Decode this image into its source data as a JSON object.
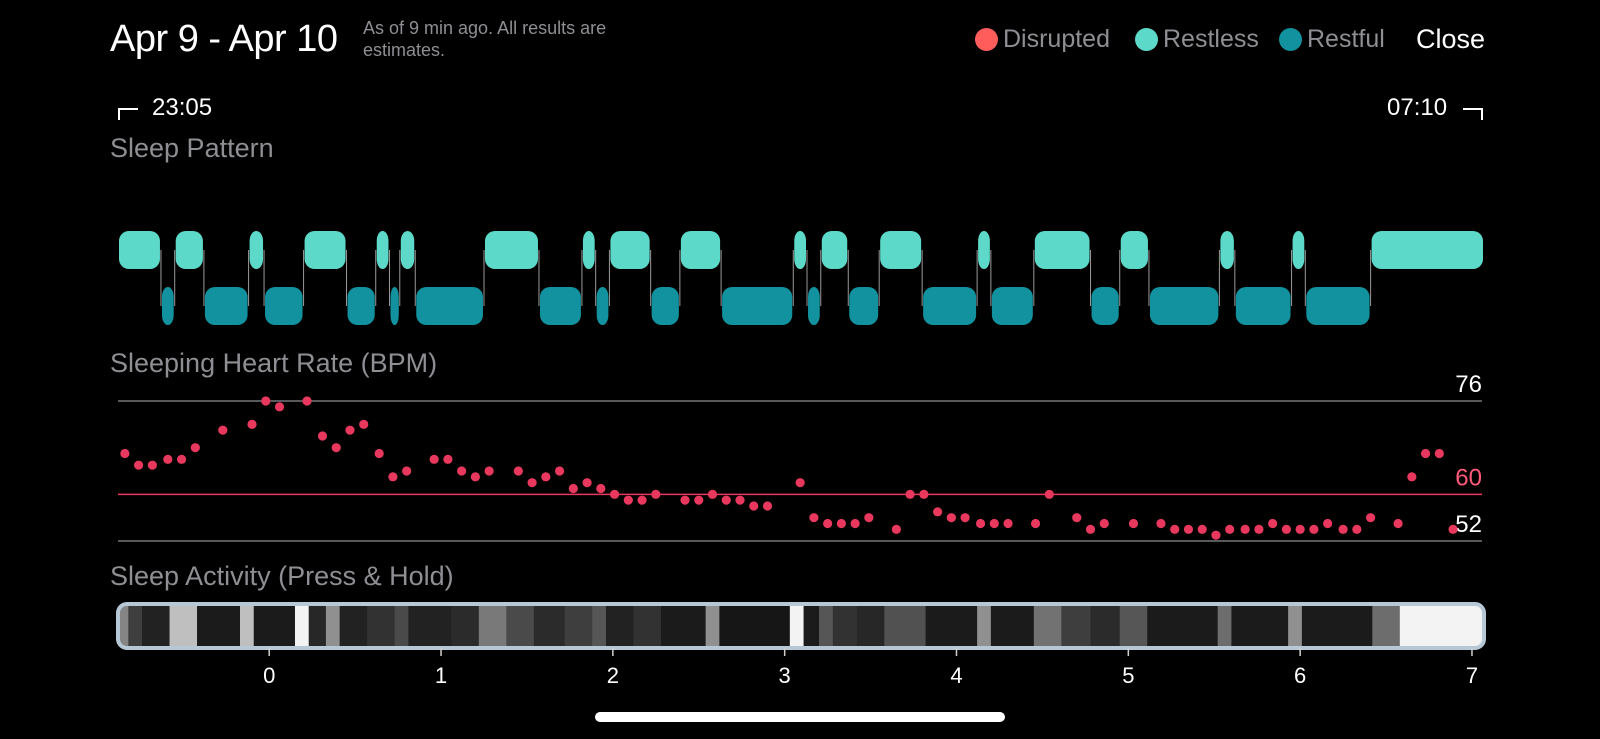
{
  "header": {
    "date_range": "Apr 9 - Apr 10",
    "note": "As of 9 min ago. All results are estimates.",
    "close_label": "Close"
  },
  "legend": [
    {
      "label": "Disrupted",
      "color": "#ff5c5c"
    },
    {
      "label": "Restless",
      "color": "#5dd9c9"
    },
    {
      "label": "Restful",
      "color": "#12919e"
    }
  ],
  "timeline": {
    "start_time": "23:05",
    "end_time": "07:10"
  },
  "sections": {
    "sleep_pattern": "Sleep Pattern",
    "heart_rate": "Sleeping Heart Rate (BPM)",
    "activity": "Sleep Activity (Press & Hold)"
  },
  "colors": {
    "restless": "#5dd9c9",
    "restful": "#12919e",
    "heart_point": "#e8385e",
    "avg_line": "#e8385e",
    "avg_label": "#ff5a78"
  },
  "chart_data": [
    {
      "type": "timeline",
      "name": "Sleep Pattern",
      "unit": "hours since midnight",
      "segments": [
        {
          "stage": "Restless",
          "start": -0.88,
          "end": -0.63
        },
        {
          "stage": "Restful",
          "start": -0.63,
          "end": -0.55
        },
        {
          "stage": "Restless",
          "start": -0.55,
          "end": -0.38
        },
        {
          "stage": "Restful",
          "start": -0.38,
          "end": -0.12
        },
        {
          "stage": "Restless",
          "start": -0.12,
          "end": -0.03
        },
        {
          "stage": "Restful",
          "start": -0.03,
          "end": 0.2
        },
        {
          "stage": "Restless",
          "start": 0.2,
          "end": 0.45
        },
        {
          "stage": "Restful",
          "start": 0.45,
          "end": 0.62
        },
        {
          "stage": "Restless",
          "start": 0.62,
          "end": 0.7
        },
        {
          "stage": "Restful",
          "start": 0.7,
          "end": 0.76
        },
        {
          "stage": "Restless",
          "start": 0.76,
          "end": 0.85
        },
        {
          "stage": "Restful",
          "start": 0.85,
          "end": 1.25
        },
        {
          "stage": "Restless",
          "start": 1.25,
          "end": 1.57
        },
        {
          "stage": "Restful",
          "start": 1.57,
          "end": 1.82
        },
        {
          "stage": "Restless",
          "start": 1.82,
          "end": 1.9
        },
        {
          "stage": "Restful",
          "start": 1.9,
          "end": 1.98
        },
        {
          "stage": "Restless",
          "start": 1.98,
          "end": 2.22
        },
        {
          "stage": "Restful",
          "start": 2.22,
          "end": 2.39
        },
        {
          "stage": "Restless",
          "start": 2.39,
          "end": 2.63
        },
        {
          "stage": "Restful",
          "start": 2.63,
          "end": 3.05
        },
        {
          "stage": "Restless",
          "start": 3.05,
          "end": 3.13
        },
        {
          "stage": "Restful",
          "start": 3.13,
          "end": 3.21
        },
        {
          "stage": "Restless",
          "start": 3.21,
          "end": 3.37
        },
        {
          "stage": "Restful",
          "start": 3.37,
          "end": 3.55
        },
        {
          "stage": "Restless",
          "start": 3.55,
          "end": 3.8
        },
        {
          "stage": "Restful",
          "start": 3.8,
          "end": 4.12
        },
        {
          "stage": "Restless",
          "start": 4.12,
          "end": 4.2
        },
        {
          "stage": "Restful",
          "start": 4.2,
          "end": 4.45
        },
        {
          "stage": "Restless",
          "start": 4.45,
          "end": 4.78
        },
        {
          "stage": "Restful",
          "start": 4.78,
          "end": 4.95
        },
        {
          "stage": "Restless",
          "start": 4.95,
          "end": 5.12
        },
        {
          "stage": "Restful",
          "start": 5.12,
          "end": 5.53
        },
        {
          "stage": "Restless",
          "start": 5.53,
          "end": 5.62
        },
        {
          "stage": "Restful",
          "start": 5.62,
          "end": 5.95
        },
        {
          "stage": "Restless",
          "start": 5.95,
          "end": 6.03
        },
        {
          "stage": "Restful",
          "start": 6.03,
          "end": 6.41
        },
        {
          "stage": "Restless",
          "start": 6.41,
          "end": 7.07
        }
      ]
    },
    {
      "type": "scatter",
      "name": "Sleeping Heart Rate (BPM)",
      "ylim": [
        52,
        76
      ],
      "reference_lines": [
        76,
        60,
        52
      ],
      "x": [
        -0.84,
        -0.76,
        -0.68,
        -0.59,
        -0.51,
        -0.43,
        -0.27,
        -0.1,
        -0.02,
        0.06,
        0.22,
        0.31,
        0.39,
        0.47,
        0.55,
        0.64,
        0.72,
        0.8,
        0.96,
        1.04,
        1.12,
        1.2,
        1.28,
        1.45,
        1.53,
        1.61,
        1.69,
        1.77,
        1.85,
        1.93,
        2.01,
        2.09,
        2.17,
        2.25,
        2.42,
        2.5,
        2.58,
        2.66,
        2.74,
        2.82,
        2.9,
        3.09,
        3.17,
        3.25,
        3.33,
        3.41,
        3.49,
        3.65,
        3.73,
        3.81,
        3.89,
        3.97,
        4.05,
        4.14,
        4.22,
        4.3,
        4.46,
        4.54,
        4.7,
        4.78,
        4.86,
        5.03,
        5.19,
        5.27,
        5.35,
        5.43,
        5.51,
        5.59,
        5.68,
        5.76,
        5.84,
        5.92,
        6,
        6.08,
        6.16,
        6.25,
        6.33,
        6.41,
        6.57,
        6.65,
        6.73,
        6.81,
        6.89
      ],
      "y": [
        67,
        65,
        65,
        66,
        66,
        68,
        71,
        72,
        76,
        75,
        76,
        70,
        68,
        71,
        72,
        67,
        63,
        64,
        66,
        66,
        64,
        63,
        64,
        64,
        62,
        63,
        64,
        61,
        62,
        61,
        60,
        59,
        59,
        60,
        59,
        59,
        60,
        59,
        59,
        58,
        58,
        62,
        56,
        55,
        55,
        55,
        56,
        54,
        60,
        60,
        57,
        56,
        56,
        55,
        55,
        55,
        55,
        60,
        56,
        54,
        55,
        55,
        55,
        54,
        54,
        54,
        53,
        54,
        54,
        54,
        55,
        54,
        54,
        54,
        55,
        54,
        54,
        56,
        55,
        63,
        67,
        67,
        54
      ]
    },
    {
      "type": "heatmap",
      "name": "Sleep Activity (Press & Hold)",
      "x_ticks": [
        "0",
        "1",
        "2",
        "3",
        "4",
        "5",
        "6",
        "7"
      ],
      "xlim": [
        -0.88,
        7.07
      ],
      "cells": [
        {
          "start": -0.88,
          "end": -0.82,
          "level": 0.5
        },
        {
          "start": -0.82,
          "end": -0.74,
          "level": 0.2
        },
        {
          "start": -0.74,
          "end": -0.58,
          "level": 0.08
        },
        {
          "start": -0.58,
          "end": -0.42,
          "level": 0.75
        },
        {
          "start": -0.42,
          "end": -0.17,
          "level": 0.05
        },
        {
          "start": -0.17,
          "end": -0.09,
          "level": 0.75
        },
        {
          "start": -0.09,
          "end": 0.15,
          "level": 0.05
        },
        {
          "start": 0.15,
          "end": 0.23,
          "level": 0.97
        },
        {
          "start": 0.23,
          "end": 0.33,
          "level": 0.1
        },
        {
          "start": 0.33,
          "end": 0.41,
          "level": 0.55
        },
        {
          "start": 0.41,
          "end": 0.57,
          "level": 0.08
        },
        {
          "start": 0.57,
          "end": 0.73,
          "level": 0.15
        },
        {
          "start": 0.73,
          "end": 0.81,
          "level": 0.25
        },
        {
          "start": 0.81,
          "end": 1.06,
          "level": 0.08
        },
        {
          "start": 1.06,
          "end": 1.22,
          "level": 0.12
        },
        {
          "start": 1.22,
          "end": 1.38,
          "level": 0.45
        },
        {
          "start": 1.38,
          "end": 1.54,
          "level": 0.25
        },
        {
          "start": 1.54,
          "end": 1.72,
          "level": 0.12
        },
        {
          "start": 1.72,
          "end": 1.88,
          "level": 0.2
        },
        {
          "start": 1.88,
          "end": 1.96,
          "level": 0.3
        },
        {
          "start": 1.96,
          "end": 2.12,
          "level": 0.08
        },
        {
          "start": 2.12,
          "end": 2.28,
          "level": 0.15
        },
        {
          "start": 2.28,
          "end": 2.54,
          "level": 0.05
        },
        {
          "start": 2.54,
          "end": 2.62,
          "level": 0.55
        },
        {
          "start": 2.62,
          "end": 3.03,
          "level": 0.03
        },
        {
          "start": 3.03,
          "end": 3.11,
          "level": 0.97
        },
        {
          "start": 3.11,
          "end": 3.2,
          "level": 0.05
        },
        {
          "start": 3.2,
          "end": 3.28,
          "level": 0.3
        },
        {
          "start": 3.28,
          "end": 3.42,
          "level": 0.15
        },
        {
          "start": 3.42,
          "end": 3.58,
          "level": 0.1
        },
        {
          "start": 3.58,
          "end": 3.82,
          "level": 0.28
        },
        {
          "start": 3.82,
          "end": 4.12,
          "level": 0.05
        },
        {
          "start": 4.12,
          "end": 4.2,
          "level": 0.55
        },
        {
          "start": 4.2,
          "end": 4.45,
          "level": 0.05
        },
        {
          "start": 4.45,
          "end": 4.61,
          "level": 0.42
        },
        {
          "start": 4.61,
          "end": 4.78,
          "level": 0.2
        },
        {
          "start": 4.78,
          "end": 4.95,
          "level": 0.12
        },
        {
          "start": 4.95,
          "end": 5.11,
          "level": 0.3
        },
        {
          "start": 5.11,
          "end": 5.52,
          "level": 0.05
        },
        {
          "start": 5.52,
          "end": 5.6,
          "level": 0.4
        },
        {
          "start": 5.6,
          "end": 5.93,
          "level": 0.05
        },
        {
          "start": 5.93,
          "end": 6.01,
          "level": 0.55
        },
        {
          "start": 6.01,
          "end": 6.42,
          "level": 0.05
        },
        {
          "start": 6.42,
          "end": 6.58,
          "level": 0.4
        },
        {
          "start": 6.58,
          "end": 7.07,
          "level": 0.97
        }
      ]
    }
  ]
}
